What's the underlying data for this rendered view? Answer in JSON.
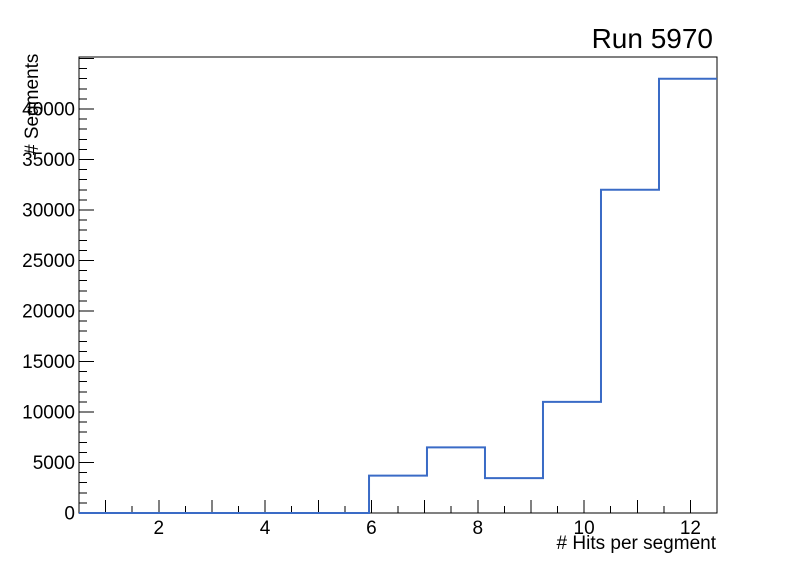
{
  "chart_data": {
    "type": "bar",
    "subtype": "histogram-step-outline",
    "title": "Run 5970",
    "xlabel": "# Hits per segment",
    "ylabel": "# Segments",
    "xlim": [
      0.5,
      12.5
    ],
    "ylim": [
      0,
      45150
    ],
    "bin_edges": [
      0.5,
      1.591,
      2.682,
      3.773,
      4.864,
      5.955,
      7.045,
      8.136,
      9.227,
      10.318,
      11.409,
      12.5
    ],
    "counts": [
      0,
      0,
      0,
      0,
      0,
      3700,
      6500,
      3450,
      11000,
      32000,
      43000
    ],
    "x_tick_labels": [
      2,
      4,
      6,
      8,
      10,
      12
    ],
    "x_minor_step": 0.5,
    "y_tick_labels": [
      0,
      5000,
      10000,
      15000,
      20000,
      25000,
      30000,
      35000,
      40000
    ],
    "y_minor_step": 1000,
    "grid": false,
    "legend": null,
    "line_color": "#3a6bc6",
    "axis_color": "#000000",
    "text_color": "#000000",
    "background_color": "#ffffff"
  }
}
